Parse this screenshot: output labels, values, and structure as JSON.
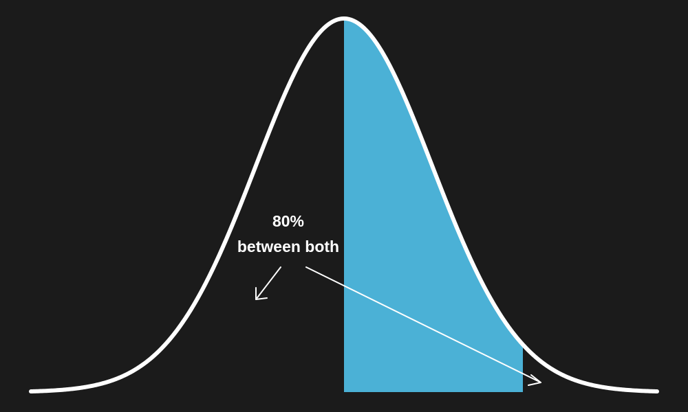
{
  "annotation": {
    "percent": "80%",
    "text": "between both"
  },
  "colors": {
    "background": "#1b1b1b",
    "curve": "#ffffff",
    "shaded_region": "#4bb1d6",
    "arrow": "#ffffff",
    "text": "#ffffff"
  },
  "icons": {
    "arrow_left": "arrow-down-left-icon",
    "arrow_right": "arrow-down-right-icon"
  }
}
